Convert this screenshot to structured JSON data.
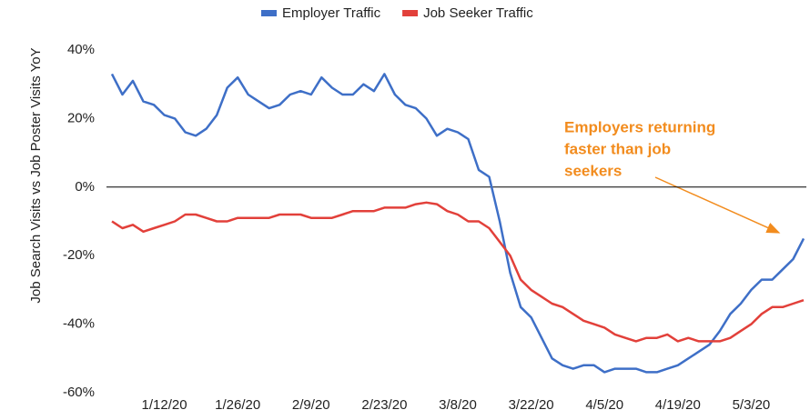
{
  "chart_data": {
    "type": "line",
    "y_label": "Job Search Visits vs Job Poster Visits YoY",
    "categories": [
      null,
      null,
      null,
      null,
      null,
      "1/12/20",
      null,
      null,
      null,
      null,
      null,
      null,
      "1/26/20",
      null,
      null,
      null,
      null,
      null,
      null,
      "2/9/20",
      null,
      null,
      null,
      null,
      null,
      null,
      "2/23/20",
      null,
      null,
      null,
      null,
      null,
      null,
      "3/8/20",
      null,
      null,
      null,
      null,
      null,
      null,
      "3/22/20",
      null,
      null,
      null,
      null,
      null,
      null,
      "4/5/20",
      null,
      null,
      null,
      null,
      null,
      null,
      "4/19/20",
      null,
      null,
      null,
      null,
      null,
      null,
      "5/3/20",
      null,
      null,
      null,
      null,
      null
    ],
    "series": [
      {
        "name": "Employer Traffic",
        "color": "#3e6fc7",
        "values": [
          33,
          27,
          31,
          25,
          24,
          21,
          20,
          16,
          15,
          17,
          21,
          29,
          32,
          27,
          25,
          23,
          24,
          27,
          28,
          27,
          32,
          29,
          27,
          27,
          30,
          28,
          33,
          27,
          24,
          23,
          20,
          15,
          17,
          16,
          14,
          5,
          3,
          -10,
          -25,
          -35,
          -38,
          -44,
          -50,
          -52,
          -53,
          -52,
          -52,
          -54,
          -53,
          -53,
          -53,
          -54,
          -54,
          -53,
          -52,
          -50,
          -48,
          -46,
          -42,
          -37,
          -34,
          -30,
          -27,
          -27,
          -24,
          -21,
          -15
        ]
      },
      {
        "name": "Job Seeker Traffic",
        "color": "#e2403a",
        "values": [
          -10,
          -12,
          -11,
          -13,
          -12,
          -11,
          -10,
          -8,
          -8,
          -9,
          -10,
          -10,
          -9,
          -9,
          -9,
          -9,
          -8,
          -8,
          -8,
          -9,
          -9,
          -9,
          -8,
          -7,
          -7,
          -7,
          -6,
          -6,
          -6,
          -5,
          -4.5,
          -5,
          -7,
          -8,
          -10,
          -10,
          -12,
          -16,
          -20,
          -27,
          -30,
          -32,
          -34,
          -35,
          -37,
          -39,
          -40,
          -41,
          -43,
          -44,
          -45,
          -44,
          -44,
          -43,
          -45,
          -44,
          -45,
          -45,
          -45,
          -44,
          -42,
          -40,
          -37,
          -35,
          -35,
          -34,
          -33
        ]
      }
    ],
    "ylim": [
      -60,
      40
    ],
    "yticks": [
      {
        "value": 40,
        "label": "40%"
      },
      {
        "value": 20,
        "label": "20%"
      },
      {
        "value": 0,
        "label": "0%"
      },
      {
        "value": -20,
        "label": "-20%"
      },
      {
        "value": -40,
        "label": "-40%"
      },
      {
        "value": -60,
        "label": "-60%"
      }
    ],
    "zero_line": true,
    "legend": "top",
    "annotation_lines": [
      "Employers returning",
      "faster than job",
      "seekers"
    ],
    "annotation_color": "#f28c1e"
  }
}
